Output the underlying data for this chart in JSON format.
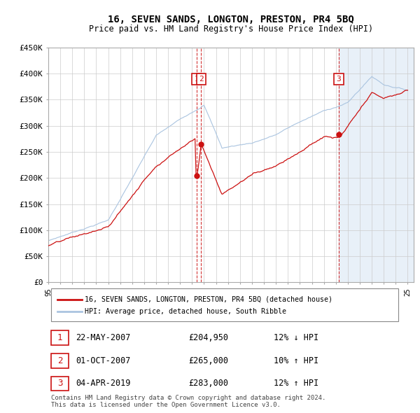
{
  "title": "16, SEVEN SANDS, LONGTON, PRESTON, PR4 5BQ",
  "subtitle": "Price paid vs. HM Land Registry's House Price Index (HPI)",
  "ylabel_ticks": [
    "£0",
    "£50K",
    "£100K",
    "£150K",
    "£200K",
    "£250K",
    "£300K",
    "£350K",
    "£400K",
    "£450K"
  ],
  "ylim": [
    0,
    450000
  ],
  "xlim_start": 1995.0,
  "xlim_end": 2025.5,
  "hpi_color": "#aac4e0",
  "price_color": "#cc1111",
  "annotation_color": "#cc1111",
  "legend_label_price": "16, SEVEN SANDS, LONGTON, PRESTON, PR4 5BQ (detached house)",
  "legend_label_hpi": "HPI: Average price, detached house, South Ribble",
  "transactions": [
    {
      "num": 1,
      "date": "22-MAY-2007",
      "price": 204950,
      "pct": "12%",
      "dir": "↓",
      "x_year": 2007.38
    },
    {
      "num": 2,
      "date": "01-OCT-2007",
      "price": 265000,
      "pct": "10%",
      "dir": "↑",
      "x_year": 2007.75
    },
    {
      "num": 3,
      "date": "04-APR-2019",
      "price": 283000,
      "pct": "12%",
      "dir": "↑",
      "x_year": 2019.25
    }
  ],
  "footer": "Contains HM Land Registry data © Crown copyright and database right 2024.\nThis data is licensed under the Open Government Licence v3.0.",
  "shade_start": 2019.25,
  "shade_color": "#e8f0f8"
}
